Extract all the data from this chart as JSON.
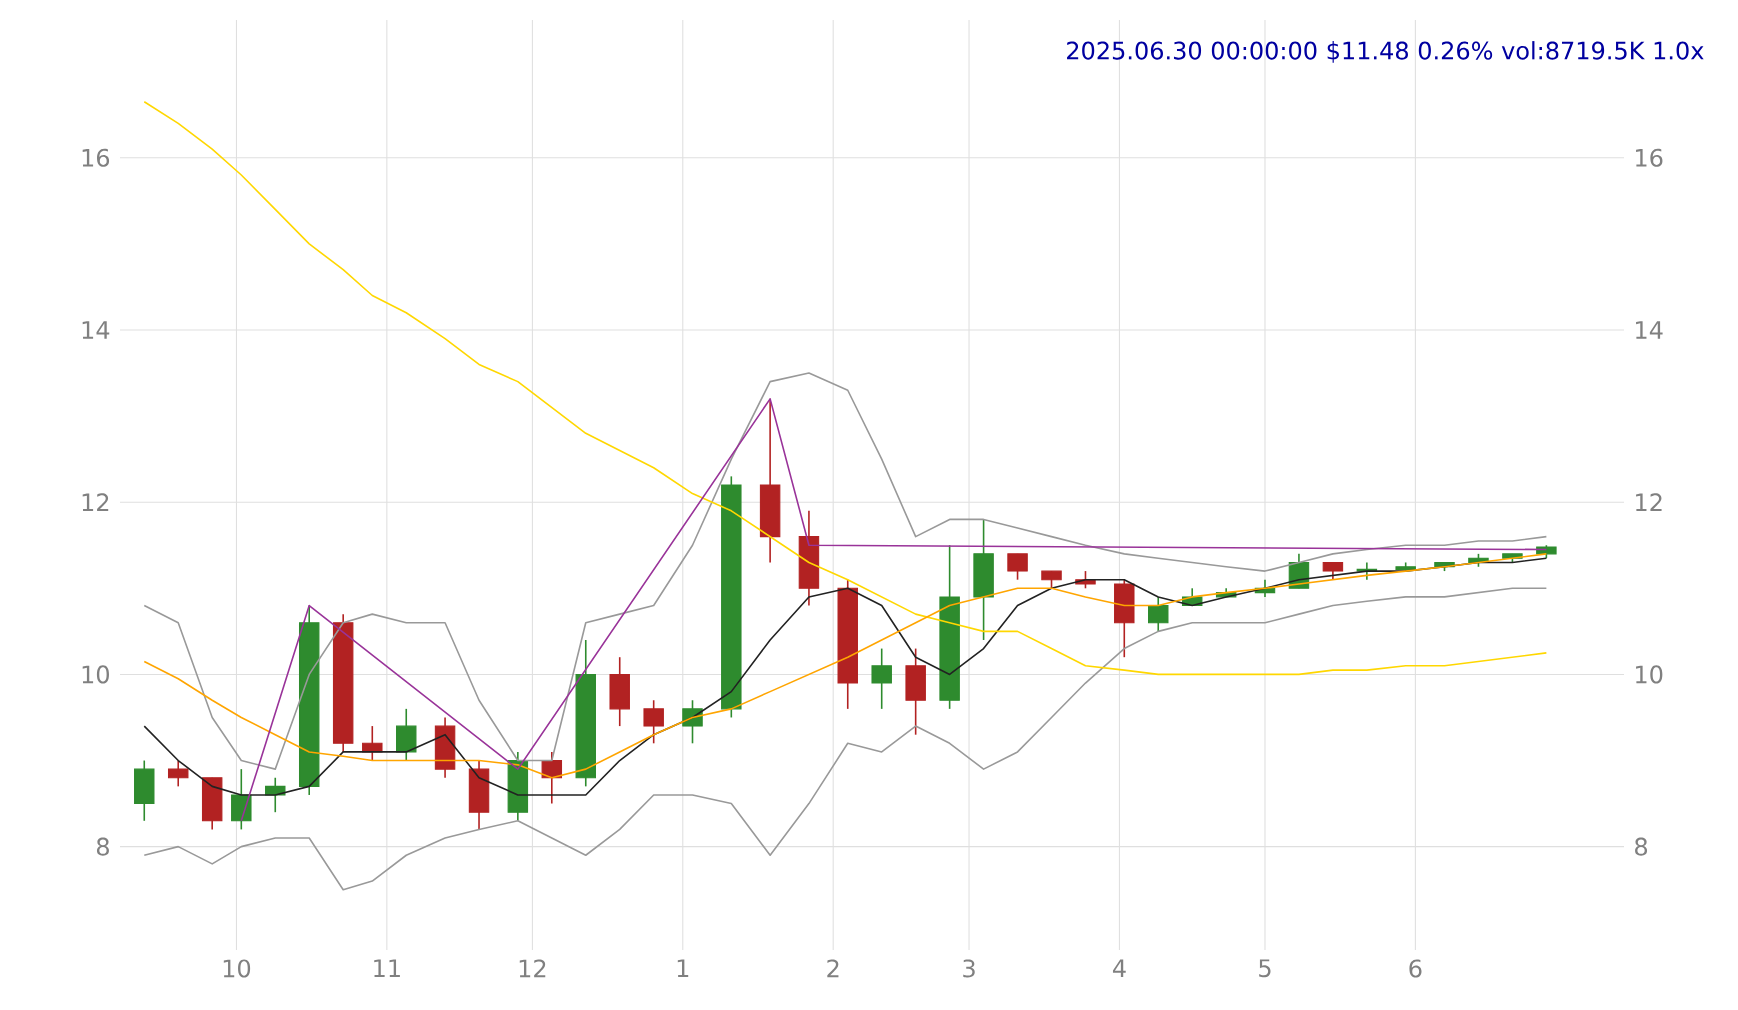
{
  "chart_data": {
    "type": "candlestick",
    "title": "2025.06.30 00:00:00 $11.48 0.26% vol:8719.5K 1.0x",
    "x": [
      "2024-09-12",
      "2024-09-19",
      "2024-09-26",
      "2024-10-02",
      "2024-10-09",
      "2024-10-16",
      "2024-10-23",
      "2024-10-29",
      "2024-11-05",
      "2024-11-13",
      "2024-11-20",
      "2024-11-28",
      "2024-12-05",
      "2024-12-12",
      "2024-12-19",
      "2024-12-26",
      "2025-01-03",
      "2025-01-11",
      "2025-01-19",
      "2025-01-27",
      "2025-02-04",
      "2025-02-11",
      "2025-02-18",
      "2025-02-25",
      "2025-03-04",
      "2025-03-11",
      "2025-03-18",
      "2025-03-25",
      "2025-04-02",
      "2025-04-09",
      "2025-04-16",
      "2025-04-23",
      "2025-05-01",
      "2025-05-08",
      "2025-05-15",
      "2025-05-22",
      "2025-05-30",
      "2025-06-07",
      "2025-06-14",
      "2025-06-21",
      "2025-06-28"
    ],
    "ohlc": [
      [
        8.5,
        9.0,
        8.3,
        8.9
      ],
      [
        8.9,
        9.0,
        8.7,
        8.8
      ],
      [
        8.8,
        8.8,
        8.2,
        8.3
      ],
      [
        8.3,
        8.9,
        8.2,
        8.6
      ],
      [
        8.6,
        8.8,
        8.4,
        8.7
      ],
      [
        8.7,
        10.8,
        8.6,
        10.6
      ],
      [
        10.6,
        10.7,
        9.1,
        9.2
      ],
      [
        9.2,
        9.4,
        9.0,
        9.1
      ],
      [
        9.1,
        9.6,
        9.0,
        9.4
      ],
      [
        9.4,
        9.5,
        8.8,
        8.9
      ],
      [
        8.9,
        9.0,
        8.2,
        8.4
      ],
      [
        8.4,
        9.1,
        8.3,
        9.0
      ],
      [
        9.0,
        9.1,
        8.5,
        8.8
      ],
      [
        8.8,
        10.4,
        8.7,
        10.0
      ],
      [
        10.0,
        10.2,
        9.4,
        9.6
      ],
      [
        9.6,
        9.7,
        9.2,
        9.4
      ],
      [
        9.4,
        9.7,
        9.2,
        9.6
      ],
      [
        9.6,
        12.3,
        9.5,
        12.2
      ],
      [
        12.2,
        13.2,
        11.3,
        11.6
      ],
      [
        11.6,
        11.9,
        10.8,
        11.0
      ],
      [
        11.0,
        11.1,
        9.6,
        9.9
      ],
      [
        9.9,
        10.3,
        9.6,
        10.1
      ],
      [
        10.1,
        10.3,
        9.3,
        9.7
      ],
      [
        9.7,
        11.5,
        9.6,
        10.9
      ],
      [
        10.9,
        11.8,
        10.4,
        11.4
      ],
      [
        11.4,
        11.4,
        11.1,
        11.2
      ],
      [
        11.2,
        11.2,
        11.0,
        11.1
      ],
      [
        11.1,
        11.2,
        11.0,
        11.05
      ],
      [
        11.05,
        11.1,
        10.2,
        10.6
      ],
      [
        10.6,
        10.9,
        10.5,
        10.8
      ],
      [
        10.8,
        11.0,
        10.8,
        10.9
      ],
      [
        10.9,
        11.0,
        10.9,
        10.95
      ],
      [
        10.95,
        11.1,
        10.9,
        11.0
      ],
      [
        11.0,
        11.4,
        11.0,
        11.3
      ],
      [
        11.3,
        11.3,
        11.1,
        11.2
      ],
      [
        11.2,
        11.3,
        11.1,
        11.22
      ],
      [
        11.22,
        11.3,
        11.2,
        11.25
      ],
      [
        11.25,
        11.3,
        11.2,
        11.3
      ],
      [
        11.3,
        11.4,
        11.25,
        11.35
      ],
      [
        11.35,
        11.4,
        11.3,
        11.4
      ],
      [
        11.4,
        11.5,
        11.35,
        11.48
      ]
    ],
    "colors": [
      "#2e8b2e",
      "#b22222",
      "#b22222",
      "#2e8b2e",
      "#2e8b2e",
      "#2e8b2e",
      "#b22222",
      "#b22222",
      "#2e8b2e",
      "#b22222",
      "#b22222",
      "#2e8b2e",
      "#b22222",
      "#2e8b2e",
      "#b22222",
      "#b22222",
      "#2e8b2e",
      "#2e8b2e",
      "#b22222",
      "#b22222",
      "#b22222",
      "#2e8b2e",
      "#b22222",
      "#2e8b2e",
      "#2e8b2e",
      "#b22222",
      "#b22222",
      "#b22222",
      "#b22222",
      "#2e8b2e",
      "#2e8b2e",
      "#2e8b2e",
      "#2e8b2e",
      "#2e8b2e",
      "#b22222",
      "#2e8b2e",
      "#2e8b2e",
      "#2e8b2e",
      "#2e8b2e",
      "#2e8b2e",
      "#2e8b2e"
    ],
    "series": [
      {
        "type": "line",
        "color": "#999999",
        "values": [
          10.8,
          10.6,
          9.5,
          9.0,
          8.9,
          10.0,
          10.6,
          10.7,
          10.6,
          10.6,
          9.7,
          9.0,
          9.0,
          10.6,
          10.7,
          10.8,
          11.5,
          12.5,
          13.4,
          13.5,
          13.3,
          12.5,
          11.6,
          11.8,
          11.8,
          11.7,
          11.6,
          11.5,
          11.4,
          11.35,
          11.3,
          11.25,
          11.2,
          11.3,
          11.4,
          11.45,
          11.5,
          11.5,
          11.55,
          11.55,
          11.6
        ]
      },
      {
        "type": "line",
        "color": "#999999",
        "values": [
          7.9,
          8.0,
          7.8,
          8.0,
          8.1,
          8.1,
          7.5,
          7.6,
          7.9,
          8.1,
          8.2,
          8.3,
          8.1,
          7.9,
          8.2,
          8.6,
          8.6,
          8.5,
          7.9,
          8.5,
          9.2,
          9.1,
          9.4,
          9.2,
          8.9,
          9.1,
          9.5,
          9.9,
          10.3,
          10.5,
          10.6,
          10.6,
          10.6,
          10.7,
          10.8,
          10.85,
          10.9,
          10.9,
          10.95,
          11.0,
          11.0
        ]
      },
      {
        "type": "line",
        "color": "#222222",
        "values": [
          9.4,
          9.0,
          8.7,
          8.6,
          8.6,
          8.7,
          9.1,
          9.1,
          9.1,
          9.3,
          8.8,
          8.6,
          8.6,
          8.6,
          9.0,
          9.3,
          9.5,
          9.8,
          10.4,
          10.9,
          11.0,
          10.8,
          10.2,
          10.0,
          10.3,
          10.8,
          11.0,
          11.1,
          11.1,
          10.9,
          10.8,
          10.9,
          11.0,
          11.1,
          11.15,
          11.2,
          11.2,
          11.25,
          11.3,
          11.3,
          11.35
        ]
      },
      {
        "type": "line",
        "color": "#ffd700",
        "values": [
          16.65,
          16.4,
          16.1,
          15.8,
          15.4,
          15.0,
          14.7,
          14.4,
          14.2,
          13.9,
          13.6,
          13.4,
          13.1,
          12.8,
          12.6,
          12.4,
          12.1,
          11.9,
          11.6,
          11.3,
          11.1,
          10.9,
          10.7,
          10.6,
          10.5,
          10.5,
          10.3,
          10.1,
          10.05,
          10.0,
          10.0,
          10.0,
          10.0,
          10.0,
          10.05,
          10.05,
          10.1,
          10.1,
          10.15,
          10.2,
          10.25
        ]
      },
      {
        "type": "line",
        "color": "#ffa500",
        "values": [
          10.15,
          9.95,
          9.7,
          9.5,
          9.3,
          9.1,
          9.05,
          9.0,
          9.0,
          9.0,
          9.0,
          8.95,
          8.8,
          8.9,
          9.1,
          9.3,
          9.5,
          9.6,
          9.8,
          10.0,
          10.2,
          10.4,
          10.6,
          10.8,
          10.9,
          11.0,
          11.0,
          10.9,
          10.8,
          10.8,
          10.9,
          10.95,
          11.0,
          11.05,
          11.1,
          11.15,
          11.2,
          11.25,
          11.3,
          11.35,
          11.4
        ]
      },
      {
        "type": "line",
        "color": "#993399",
        "x": [
          "2024-10-02",
          "2024-10-16",
          "2024-11-28",
          "2025-01-19",
          "2025-01-27",
          "2025-06-28"
        ],
        "values": [
          8.3,
          10.8,
          8.9,
          13.2,
          11.5,
          11.45
        ]
      }
    ],
    "xlim": [
      "2024-09-07",
      "2025-07-14"
    ],
    "xticks": [
      {
        "value": "2024-10-01",
        "label": "10"
      },
      {
        "value": "2024-11-01",
        "label": "11"
      },
      {
        "value": "2024-12-01",
        "label": "12"
      },
      {
        "value": "2025-01-01",
        "label": "1"
      },
      {
        "value": "2025-02-01",
        "label": "2"
      },
      {
        "value": "2025-03-01",
        "label": "3"
      },
      {
        "value": "2025-04-01",
        "label": "4"
      },
      {
        "value": "2025-05-01",
        "label": "5"
      },
      {
        "value": "2025-06-01",
        "label": "6"
      }
    ],
    "ylim": [
      6.8,
      17.6
    ],
    "yticks": [
      8,
      10,
      12,
      14,
      16
    ],
    "y2lim": [
      6.8,
      17.6
    ],
    "y2ticks": [
      8,
      10,
      12,
      14,
      16
    ],
    "grid": true
  }
}
